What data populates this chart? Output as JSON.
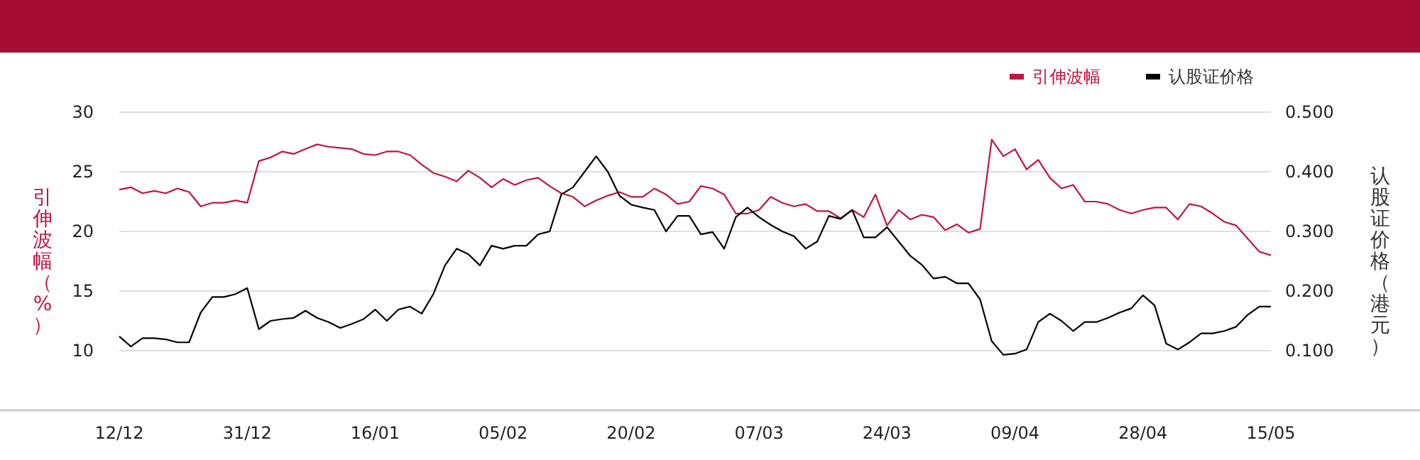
{
  "chart_data": {
    "type": "line",
    "categories": [
      "12/12",
      null,
      null,
      null,
      null,
      null,
      null,
      null,
      null,
      null,
      null,
      "31/12",
      null,
      null,
      null,
      null,
      null,
      null,
      null,
      null,
      null,
      null,
      "16/01",
      null,
      null,
      null,
      null,
      null,
      null,
      null,
      null,
      null,
      null,
      "05/02",
      null,
      null,
      null,
      null,
      null,
      null,
      null,
      null,
      null,
      null,
      "20/02",
      null,
      null,
      null,
      null,
      null,
      null,
      null,
      null,
      null,
      null,
      "07/03",
      null,
      null,
      null,
      null,
      null,
      null,
      null,
      null,
      null,
      null,
      "24/03",
      null,
      null,
      null,
      null,
      null,
      null,
      null,
      null,
      null,
      null,
      "09/04",
      null,
      null,
      null,
      null,
      null,
      null,
      null,
      null,
      null,
      null,
      "28/04",
      null,
      null,
      null,
      null,
      null,
      null,
      null,
      null,
      null,
      null,
      "15/05"
    ],
    "ylabel": "引伸波幅（%）",
    "y2label": "认股证价格（港元）",
    "ylim": [
      5,
      30
    ],
    "yticks": [
      10,
      15,
      20,
      25,
      30
    ],
    "y2lim": [
      0,
      0.5
    ],
    "y2ticks": [
      {
        "value": 0.1,
        "label": "0.100"
      },
      {
        "value": 0.2,
        "label": "0.200"
      },
      {
        "value": 0.3,
        "label": "0.300"
      },
      {
        "value": 0.4,
        "label": "0.400"
      },
      {
        "value": 0.5,
        "label": "0.500"
      }
    ],
    "grid": "y",
    "legend": "top right",
    "marker": "none",
    "line_style": "solid",
    "series": [
      {
        "name": "引伸波幅",
        "color": "#c0163f",
        "values": [
          23.5,
          23.7,
          23.2,
          23.4,
          23.2,
          23.6,
          23.3,
          22.1,
          22.4,
          22.4,
          22.6,
          22.4,
          25.9,
          26.2,
          26.7,
          26.5,
          26.9,
          27.3,
          27.1,
          27.0,
          26.9,
          26.5,
          26.4,
          26.7,
          26.7,
          26.4,
          25.6,
          24.9,
          24.6,
          24.2,
          25.1,
          24.5,
          23.7,
          24.4,
          23.9,
          24.3,
          24.5,
          23.8,
          23.2,
          22.9,
          22.1,
          22.6,
          23.0,
          23.3,
          22.9,
          22.9,
          23.6,
          23.1,
          22.3,
          22.5,
          23.8,
          23.6,
          23.1,
          21.5,
          21.5,
          21.8,
          22.9,
          22.4,
          22.1,
          22.3,
          21.7,
          21.7,
          21.1,
          21.8,
          21.2,
          23.1,
          20.5,
          21.8,
          21.0,
          21.4,
          21.2,
          20.1,
          20.6,
          19.9,
          20.2,
          27.7,
          26.3,
          26.9,
          25.2,
          26.0,
          24.5,
          23.6,
          23.9,
          22.5,
          22.5,
          22.3,
          21.8,
          21.5,
          21.8,
          22.0,
          22.0,
          21.0,
          22.3,
          22.1,
          21.5,
          20.8,
          20.5,
          19.4,
          18.3,
          18.0
        ]
      },
      {
        "name": "认股证价格",
        "color": "#000000",
        "axis": "y2",
        "values": [
          0.124,
          0.107,
          0.121,
          0.121,
          0.119,
          0.114,
          0.114,
          0.164,
          0.19,
          0.19,
          0.195,
          0.205,
          0.136,
          0.15,
          0.153,
          0.155,
          0.167,
          0.155,
          0.148,
          0.138,
          0.145,
          0.153,
          0.169,
          0.15,
          0.169,
          0.174,
          0.162,
          0.195,
          0.243,
          0.271,
          0.262,
          0.243,
          0.276,
          0.271,
          0.276,
          0.276,
          0.295,
          0.3,
          0.362,
          0.374,
          0.4,
          0.426,
          0.4,
          0.36,
          0.345,
          0.34,
          0.336,
          0.3,
          0.326,
          0.326,
          0.295,
          0.299,
          0.271,
          0.324,
          0.34,
          0.324,
          0.311,
          0.3,
          0.292,
          0.271,
          0.283,
          0.326,
          0.321,
          0.336,
          0.29,
          0.29,
          0.307,
          0.283,
          0.259,
          0.244,
          0.221,
          0.224,
          0.213,
          0.213,
          0.186,
          0.116,
          0.093,
          0.095,
          0.102,
          0.148,
          0.162,
          0.15,
          0.133,
          0.148,
          0.148,
          0.155,
          0.164,
          0.171,
          0.193,
          0.176,
          0.112,
          0.102,
          0.114,
          0.129,
          0.129,
          0.133,
          0.14,
          0.16,
          0.174,
          0.174
        ]
      }
    ]
  }
}
